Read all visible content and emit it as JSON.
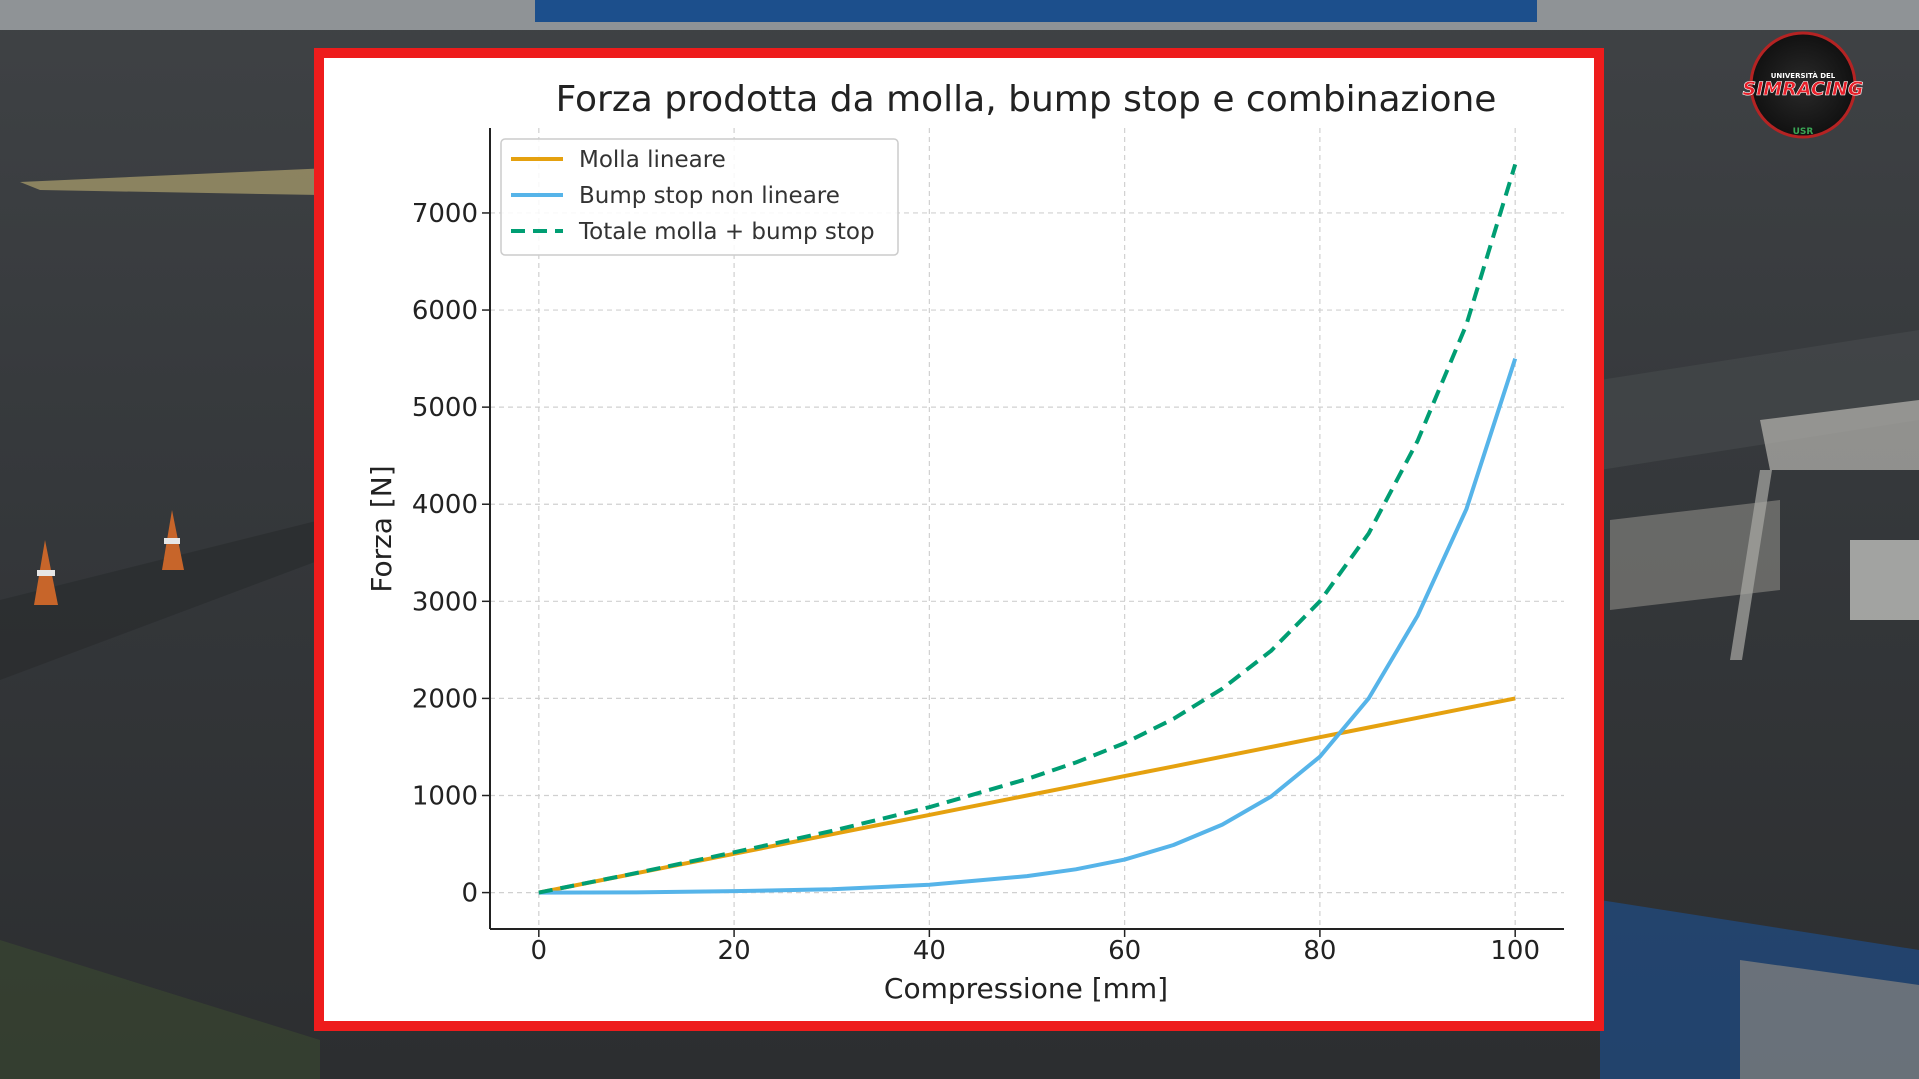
{
  "logo": {
    "top_text": "UNIVERSITÀ DEL",
    "main_text": "SIMRACING",
    "badge_text": "USR"
  },
  "colors": {
    "frame": "#ee1c1c",
    "molla": "#e5a10f",
    "bump": "#56b4e9",
    "totale": "#009e73"
  },
  "chart_data": {
    "type": "line",
    "title": "Forza prodotta da molla, bump stop e combinazione",
    "xlabel": "Compressione [mm]",
    "ylabel": "Forza [N]",
    "xlim": [
      -5,
      105
    ],
    "ylim": [
      -375,
      7875
    ],
    "xticks": [
      0,
      20,
      40,
      60,
      80,
      100
    ],
    "yticks": [
      0,
      1000,
      2000,
      3000,
      4000,
      5000,
      6000,
      7000
    ],
    "grid": true,
    "legend_position": "top-left",
    "x": [
      0,
      10,
      20,
      30,
      40,
      50,
      55,
      60,
      65,
      70,
      75,
      80,
      85,
      90,
      95,
      100
    ],
    "series": [
      {
        "name": "Molla lineare",
        "style": "solid",
        "values": [
          0,
          200,
          400,
          600,
          800,
          1000,
          1100,
          1200,
          1300,
          1400,
          1500,
          1600,
          1700,
          1800,
          1900,
          2000
        ]
      },
      {
        "name": "Bump stop non lineare",
        "style": "solid",
        "values": [
          0,
          2,
          15,
          34,
          80,
          170,
          240,
          340,
          490,
          700,
          990,
          1400,
          2000,
          2850,
          3950,
          5500
        ]
      },
      {
        "name": "Totale molla + bump stop",
        "style": "dashed",
        "values": [
          0,
          202,
          415,
          634,
          880,
          1170,
          1340,
          1540,
          1790,
          2100,
          2490,
          3000,
          3700,
          4650,
          5850,
          7500
        ]
      }
    ]
  }
}
